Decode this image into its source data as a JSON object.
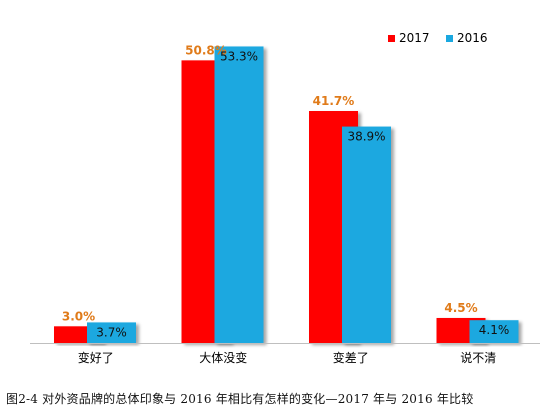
{
  "caption": "图2-4 对外资品牌的总体印象与 2016 年相比有怎样的变化—2017 年与 2016 年比较",
  "colors": {
    "series_2017": "#ff0000",
    "series_2016": "#1aa8e0",
    "label_2017": "#e07b1a",
    "label_2016": "#111111",
    "axis": "#bfbfbf"
  },
  "chart_data": {
    "type": "bar",
    "categories": [
      "变好了",
      "大体没变",
      "变差了",
      "说不清"
    ],
    "series": [
      {
        "name": "2017",
        "values": [
          3.0,
          50.8,
          41.7,
          4.5
        ],
        "labels": [
          "3.0%",
          "50.8%",
          "41.7%",
          "4.5%"
        ]
      },
      {
        "name": "2016",
        "values": [
          3.7,
          53.3,
          38.9,
          4.1
        ],
        "labels": [
          "3.7%",
          "53.3%",
          "38.9%",
          "4.1%"
        ]
      }
    ],
    "ylim": [
      0,
      55
    ],
    "grid": false,
    "legend_position": "top-right",
    "xlabel": "",
    "ylabel": ""
  }
}
